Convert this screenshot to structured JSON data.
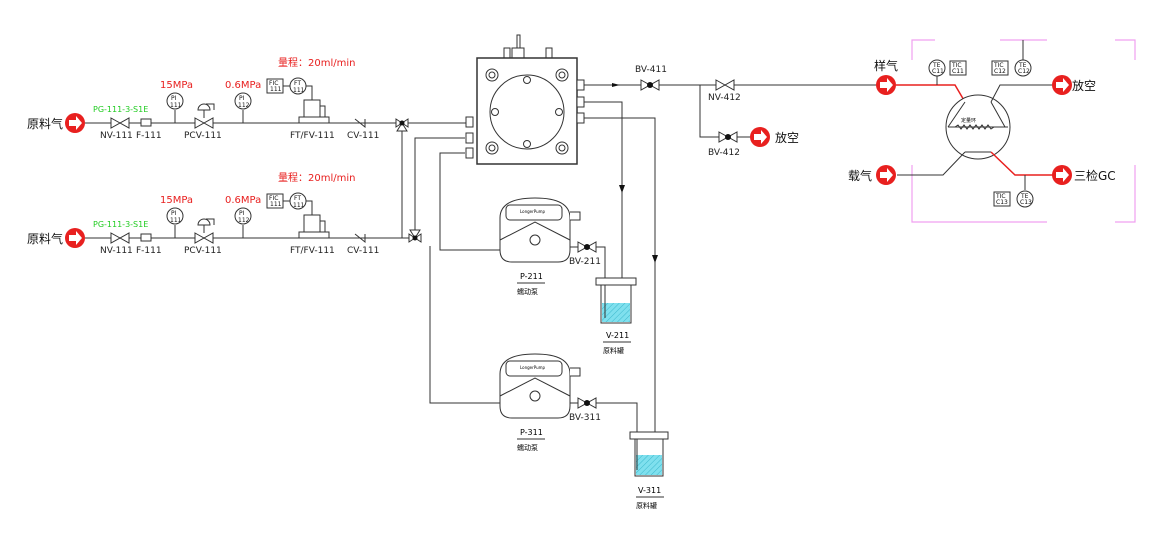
{
  "colors": {
    "pressure_label": "#e8201f",
    "tag_label": "#22cc22",
    "arrow": "#e8201f",
    "liquid": "#7fe0ee",
    "frame": "#f0a0f0"
  },
  "feed1": {
    "inlet": "原料气",
    "tag": "PG-111-3-S1E",
    "nv": "NV-111",
    "f": "F-111",
    "pcv": "PCV-111",
    "pi1": {
      "p": "15MPa",
      "a": "PI",
      "b": "111"
    },
    "pi2": {
      "p": "0.6MPa",
      "a": "PI",
      "b": "112"
    },
    "range": "量程：20ml/min",
    "fic": {
      "a": "FIC",
      "b": "111"
    },
    "ft": {
      "a": "FT",
      "b": "111"
    },
    "ftfv": "FT/FV-111",
    "cv": "CV-111"
  },
  "feed2": {
    "inlet": "原料气",
    "tag": "PG-111-3-S1E",
    "nv": "NV-111",
    "f": "F-111",
    "pcv": "PCV-111",
    "pi1": {
      "p": "15MPa",
      "a": "PI",
      "b": "111"
    },
    "pi2": {
      "p": "0.6MPa",
      "a": "PI",
      "b": "112"
    },
    "range": "量程：20ml/min",
    "fic": {
      "a": "FIC",
      "b": "111"
    },
    "ft": {
      "a": "FT",
      "b": "111"
    },
    "ftfv": "FT/FV-111",
    "cv": "CV-111"
  },
  "outlet": {
    "bv411": "BV-411",
    "nv412": "NV-412",
    "bv412": "BV-412",
    "vent": "放空"
  },
  "pumps": [
    {
      "tag": "P-211",
      "name": "蠕动泵",
      "valve": "BV-211",
      "brand": "LongerPump",
      "tank": "V-211",
      "tank_name": "原料罐"
    },
    {
      "tag": "P-311",
      "name": "蠕动泵",
      "valve": "BV-311",
      "brand": "LongerPump",
      "tank": "V-311",
      "tank_name": "原料罐"
    }
  ],
  "gc": {
    "sample": "样气",
    "carrier": "载气",
    "vent": "放空",
    "to_gc": "三检GC",
    "loop": "定量环",
    "te11": {
      "a": "TE",
      "b": "C11"
    },
    "tic11": {
      "a": "TIC",
      "b": "C11"
    },
    "tic12": {
      "a": "TIC",
      "b": "C12"
    },
    "te12": {
      "a": "TE",
      "b": "C12"
    },
    "tic13": {
      "a": "TIC",
      "b": "C13"
    },
    "te13": {
      "a": "TE",
      "b": "C13"
    }
  }
}
